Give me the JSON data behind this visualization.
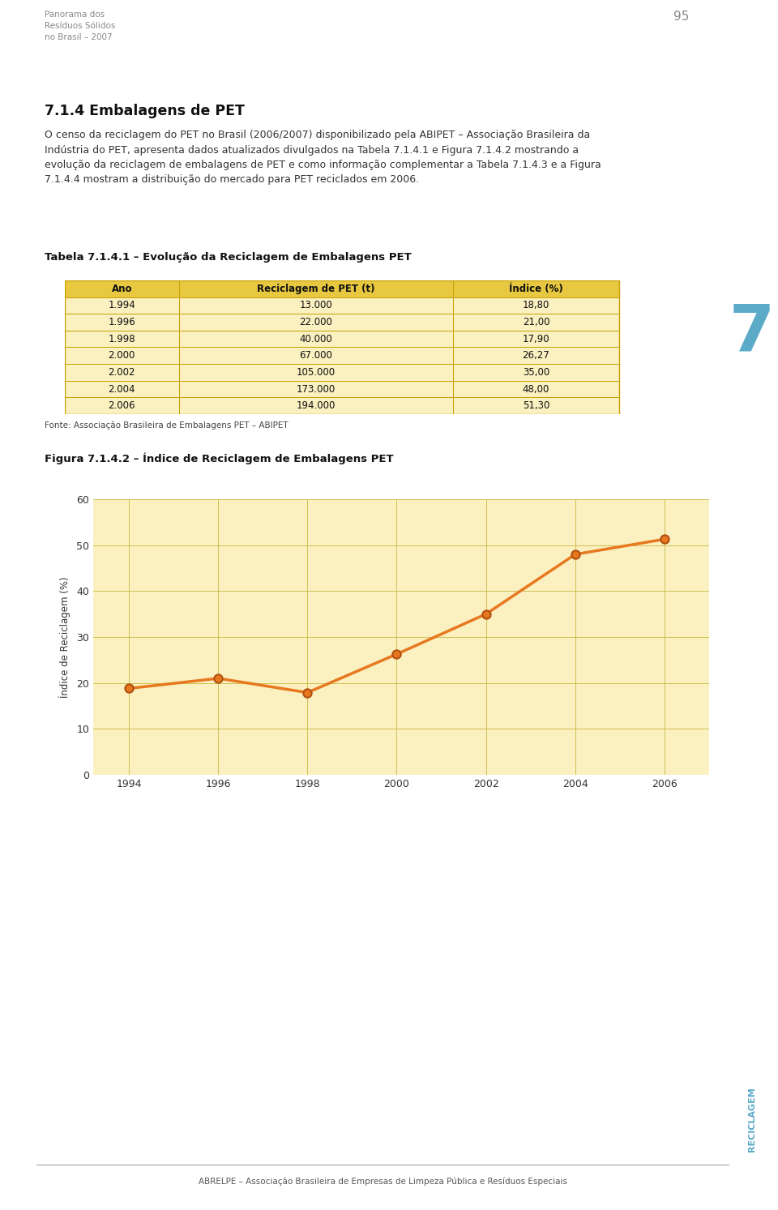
{
  "page_title_left": "Panorama dos\nResíduos Sólidos\nno Brasil – 2007",
  "page_number": "95",
  "section_title": "7.1.4 Embalagens de PET",
  "body_text_line1": "O censo da reciclagem do PET no Brasil (2006/2007) disponibilizado pela ABIPET – Associação Brasileira da",
  "body_text_line2": "Indústria do PET, apresenta dados atualizados divulgados na Tabela 7.1.4.1 e Figura 7.1.4.2 mostrando a",
  "body_text_line3": "evolução da reciclagem de embalagens de PET e como informação complementar a Tabela 7.1.4.3 e a Figura",
  "body_text_line4": "7.1.4.4 mostram a distribuição do mercado para PET reciclados em 2006.",
  "table_title": "Tabela 7.1.4.1 – Evolução da Reciclagem de Embalagens PET",
  "table_headers": [
    "Ano",
    "Reciclagem de PET (t)",
    "Índice (%)"
  ],
  "table_data": [
    [
      "1.994",
      "13.000",
      "18,80"
    ],
    [
      "1.996",
      "22.000",
      "21,00"
    ],
    [
      "1.998",
      "40.000",
      "17,90"
    ],
    [
      "2.000",
      "67.000",
      "26,27"
    ],
    [
      "2.002",
      "105.000",
      "35,00"
    ],
    [
      "2.004",
      "173.000",
      "48,00"
    ],
    [
      "2.006",
      "194.000",
      "51,30"
    ]
  ],
  "table_source": "Fonte: Associação Brasileira de Embalagens PET – ABIPET",
  "table_header_bg": "#E8C840",
  "table_row_bg": "#FAF0C0",
  "table_border_color": "#C8A000",
  "chart_title": "Figura 7.1.4.2 – Índice de Reciclagem de Embalagens PET",
  "chart_years": [
    1994,
    1996,
    1998,
    2000,
    2002,
    2004,
    2006
  ],
  "chart_values": [
    18.8,
    21.0,
    17.9,
    26.27,
    35.0,
    48.0,
    51.3
  ],
  "chart_outer_bg": "#E8D060",
  "chart_plot_bg": "#FAF0C0",
  "chart_line_color": "#E87820",
  "chart_marker_face": "#E87820",
  "chart_marker_edge": "#B05010",
  "chart_ylabel": "Índice de Reciclagem (%)",
  "chart_ylim": [
    0,
    60
  ],
  "chart_yticks": [
    0,
    10,
    20,
    30,
    40,
    50,
    60
  ],
  "chart_xticks": [
    1994,
    1996,
    1998,
    2000,
    2002,
    2004,
    2006
  ],
  "sidebar_color": "#B8D8E8",
  "sidebar_number": "7",
  "sidebar_number_color": "#5AAAC8",
  "reciclagem_text": "RECICLAGEM",
  "reciclagem_color": "#5AAAC8",
  "footer_text": "ABRELPE – Associação Brasileira de Empresas de Limpeza Pública e Resíduos Especiais",
  "background_color": "#FFFFFF",
  "header_color": "#888888",
  "text_color": "#333333"
}
